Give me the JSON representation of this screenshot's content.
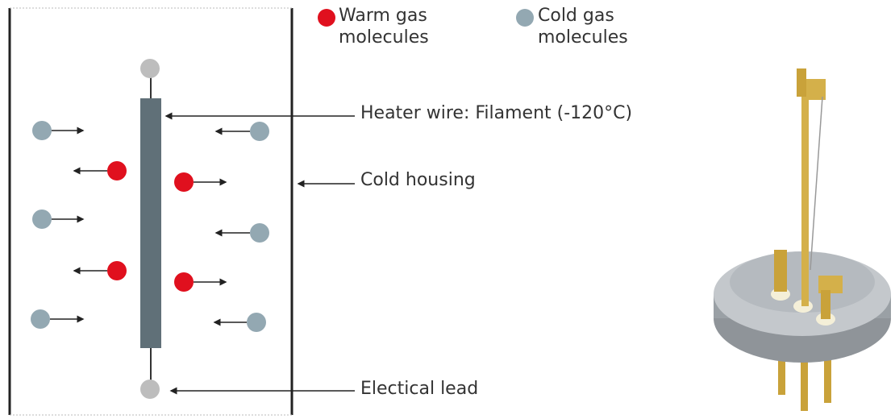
{
  "legend": [
    {
      "label": "Warm gas molecules"
    },
    {
      "label": "Cold gas molecules"
    }
  ],
  "labels": {
    "heater": "Heater wire: Filament (-120°C)",
    "housing": "Cold housing",
    "lead": "Electical lead"
  }
}
